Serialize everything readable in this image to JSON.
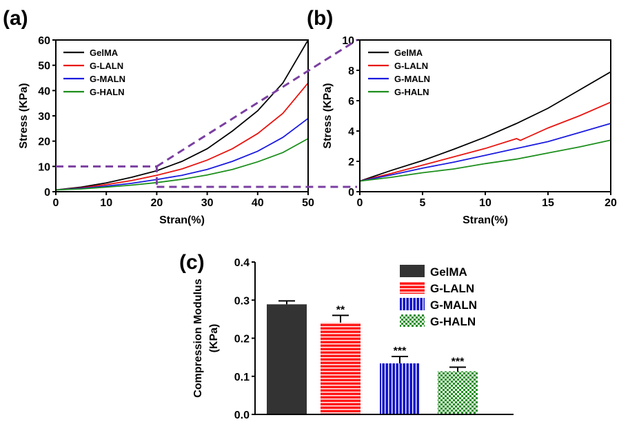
{
  "panel_labels": {
    "a": "(a)",
    "b": "(b)",
    "c": "(c)"
  },
  "colors": {
    "GelMA": "#000000",
    "G-LALN": "#e8140f",
    "G-MALN": "#1a1ae0",
    "G-HALN": "#1c8f1c",
    "zoom": "#7a3fa0",
    "bar_GelMA": "#333333",
    "bar_G-LALN": "#ff1a1a",
    "bar_G-MALN": "#1212c8",
    "bar_G-HALN": "#1c8f1c"
  },
  "chart_data": [
    {
      "id": "a",
      "type": "line",
      "xlabel": "Stran(%)",
      "ylabel": "Stress (KPa)",
      "xlim": [
        0,
        50
      ],
      "ylim": [
        0,
        60
      ],
      "xticks": [
        0,
        10,
        20,
        30,
        40,
        50
      ],
      "yticks": [
        0,
        10,
        20,
        30,
        40,
        50,
        60
      ],
      "legend_position": "top-left",
      "zoom_box": {
        "x": [
          0,
          20
        ],
        "y": [
          0,
          10
        ]
      },
      "series": [
        {
          "name": "GelMA",
          "x": [
            0,
            5,
            10,
            15,
            20,
            25,
            30,
            35,
            40,
            45,
            50
          ],
          "y": [
            0.7,
            1.8,
            3.5,
            5.7,
            8.3,
            12.0,
            17.0,
            24.0,
            32.0,
            43.0,
            60.0
          ]
        },
        {
          "name": "G-LALN",
          "x": [
            0,
            5,
            10,
            15,
            20,
            25,
            30,
            35,
            40,
            45,
            50
          ],
          "y": [
            0.7,
            1.5,
            2.8,
            4.4,
            6.5,
            9.0,
            12.5,
            17.0,
            23.0,
            31.0,
            43.0
          ]
        },
        {
          "name": "G-MALN",
          "x": [
            0,
            5,
            10,
            15,
            20,
            25,
            30,
            35,
            40,
            45,
            50
          ],
          "y": [
            0.7,
            1.3,
            2.2,
            3.3,
            4.8,
            6.5,
            8.8,
            12.0,
            16.0,
            21.5,
            29.0
          ]
        },
        {
          "name": "G-HALN",
          "x": [
            0,
            5,
            10,
            15,
            20,
            25,
            30,
            35,
            40,
            45,
            50
          ],
          "y": [
            0.7,
            1.1,
            1.8,
            2.6,
            3.6,
            4.9,
            6.6,
            8.8,
            11.8,
            15.5,
            21.0
          ]
        }
      ]
    },
    {
      "id": "b",
      "type": "line",
      "xlabel": "Stran(%)",
      "ylabel": "Stress (KPa)",
      "xlim": [
        0,
        20
      ],
      "ylim": [
        0,
        10
      ],
      "xticks": [
        0,
        5,
        10,
        15,
        20
      ],
      "yticks": [
        0,
        2,
        4,
        6,
        8,
        10
      ],
      "legend_position": "top-left",
      "series": [
        {
          "name": "GelMA",
          "x": [
            0,
            2.5,
            5,
            7.5,
            10,
            12.5,
            15,
            17.5,
            20
          ],
          "y": [
            0.7,
            1.4,
            2.05,
            2.8,
            3.6,
            4.5,
            5.5,
            6.7,
            7.9
          ]
        },
        {
          "name": "G-LALN",
          "x": [
            0,
            2.5,
            5,
            7.5,
            10,
            12.5,
            12.8,
            15,
            17.5,
            20
          ],
          "y": [
            0.7,
            1.2,
            1.75,
            2.3,
            2.85,
            3.5,
            3.38,
            4.2,
            5.0,
            5.9
          ]
        },
        {
          "name": "G-MALN",
          "x": [
            0,
            2.5,
            5,
            7.5,
            10,
            12.5,
            15,
            17.5,
            20
          ],
          "y": [
            0.7,
            1.1,
            1.55,
            1.95,
            2.4,
            2.85,
            3.3,
            3.9,
            4.5
          ]
        },
        {
          "name": "G-HALN",
          "x": [
            0,
            2.5,
            5,
            7.5,
            10,
            12.5,
            15,
            17.5,
            20
          ],
          "y": [
            0.7,
            0.95,
            1.25,
            1.5,
            1.85,
            2.15,
            2.55,
            2.95,
            3.4
          ]
        }
      ]
    },
    {
      "id": "c",
      "type": "bar",
      "ylabel_line1": "Compression Modulus",
      "ylabel_line2": "(KPa)",
      "ylim": [
        0,
        0.4
      ],
      "yticks": [
        "0.0",
        "0.1",
        "0.2",
        "0.3",
        "0.4"
      ],
      "categories": [
        "GelMA",
        "G-LALN",
        "G-MALN",
        "G-HALN"
      ],
      "values": [
        0.289,
        0.241,
        0.134,
        0.113
      ],
      "errors": [
        0.009,
        0.019,
        0.018,
        0.011
      ],
      "significance": [
        "",
        "**",
        "***",
        "***"
      ],
      "legend_position": "top-right"
    }
  ]
}
